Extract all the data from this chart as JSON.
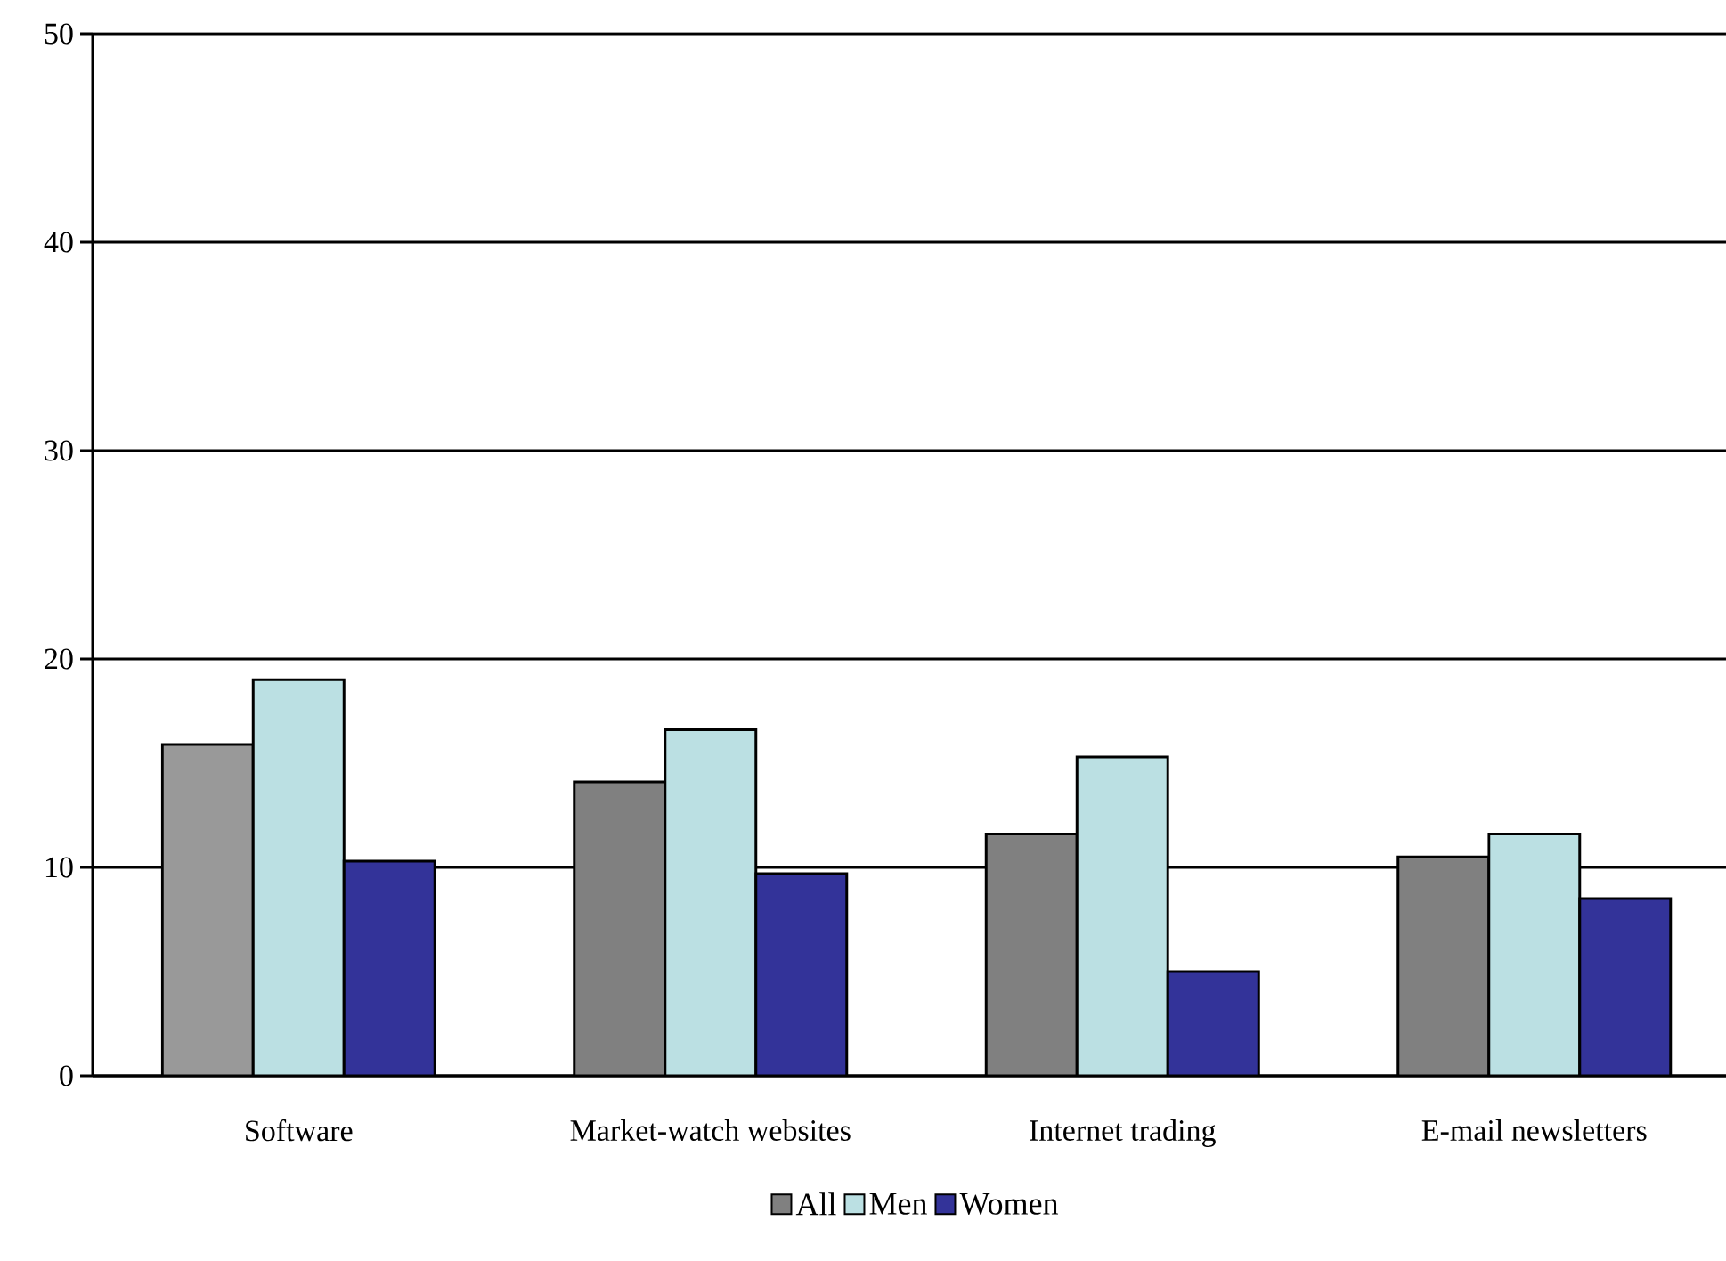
{
  "chart_data": {
    "type": "bar",
    "categories": [
      "Software",
      "Market-watch websites",
      "Internet trading",
      "E-mail newsletters"
    ],
    "series": [
      {
        "name": "All",
        "color": "#808080",
        "colors": [
          "#999999",
          "#808080",
          "#808080",
          "#808080"
        ],
        "values": [
          15.9,
          14.1,
          11.6,
          10.5
        ]
      },
      {
        "name": "Men",
        "color": "#bbe0e3",
        "values": [
          19.0,
          16.6,
          15.3,
          11.6
        ]
      },
      {
        "name": "Women",
        "color": "#333399",
        "values": [
          10.3,
          9.7,
          5.0,
          8.5
        ]
      }
    ],
    "ylim": [
      0,
      50
    ],
    "yticks": [
      0,
      10,
      20,
      30,
      40,
      50
    ],
    "grid": "y",
    "legend": "bottom"
  }
}
